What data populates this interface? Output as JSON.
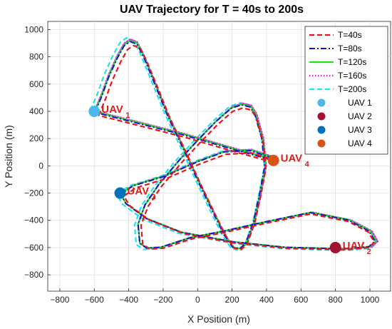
{
  "chart_data": {
    "type": "line",
    "title": "UAV Trajectory for T = 40s to 200s",
    "xlabel": "X Position (m)",
    "ylabel": "Y Position (m)",
    "xlim": [
      -870,
      1120
    ],
    "ylim": [
      -920,
      1060
    ],
    "xticks": [
      -800,
      -600,
      -400,
      -200,
      0,
      200,
      400,
      600,
      800,
      1000
    ],
    "yticks": [
      -800,
      -600,
      -400,
      -200,
      0,
      200,
      400,
      600,
      800,
      1000
    ],
    "grid": true,
    "legend_position": "top-right",
    "series": [
      {
        "name": "T=40s",
        "color": "#e8141b",
        "style": "dashed"
      },
      {
        "name": "T=80s",
        "color": "#1515c8",
        "style": "dashdot"
      },
      {
        "name": "T=120s",
        "color": "#22dd22",
        "style": "solid"
      },
      {
        "name": "T=160s",
        "color": "#e619e6",
        "style": "dotted"
      },
      {
        "name": "T=200s",
        "color": "#21e3ec",
        "style": "dashed"
      }
    ],
    "path_points": [
      [
        -600,
        400
      ],
      [
        -560,
        520
      ],
      [
        -520,
        660
      ],
      [
        -470,
        800
      ],
      [
        -430,
        890
      ],
      [
        -395,
        920
      ],
      [
        -355,
        900
      ],
      [
        -315,
        800
      ],
      [
        -250,
        600
      ],
      [
        -180,
        380
      ],
      [
        -90,
        140
      ],
      [
        0,
        -110
      ],
      [
        80,
        -320
      ],
      [
        150,
        -500
      ],
      [
        200,
        -590
      ],
      [
        240,
        -600
      ],
      [
        275,
        -560
      ],
      [
        320,
        -400
      ],
      [
        355,
        -200
      ],
      [
        385,
        0
      ],
      [
        370,
        200
      ],
      [
        330,
        380
      ],
      [
        300,
        440
      ],
      [
        250,
        455
      ],
      [
        190,
        430
      ],
      [
        100,
        330
      ],
      [
        0,
        200
      ],
      [
        -110,
        50
      ],
      [
        -230,
        -130
      ],
      [
        -310,
        -280
      ],
      [
        -350,
        -420
      ],
      [
        -340,
        -560
      ],
      [
        -300,
        -595
      ],
      [
        -220,
        -590
      ],
      [
        -50,
        -520
      ],
      [
        150,
        -470
      ],
      [
        400,
        -400
      ],
      [
        650,
        -335
      ],
      [
        870,
        -390
      ],
      [
        990,
        -470
      ],
      [
        1025,
        -545
      ],
      [
        990,
        -585
      ],
      [
        870,
        -600
      ],
      [
        800,
        -600
      ],
      [
        500,
        -590
      ],
      [
        200,
        -550
      ],
      [
        -100,
        -480
      ],
      [
        -300,
        -380
      ],
      [
        -420,
        -270
      ],
      [
        -450,
        -200
      ],
      [
        -380,
        -140
      ],
      [
        -200,
        -70
      ],
      [
        0,
        40
      ],
      [
        150,
        110
      ],
      [
        300,
        120
      ],
      [
        420,
        70
      ],
      [
        440,
        40
      ],
      [
        400,
        60
      ],
      [
        200,
        130
      ],
      [
        -100,
        240
      ],
      [
        -600,
        400
      ]
    ],
    "offsets": [
      {
        "series": "T=40s",
        "dx": 12,
        "dy": -26,
        "scale": 0.985
      },
      {
        "series": "T=80s",
        "dx": 4,
        "dy": -8,
        "scale": 1.0
      },
      {
        "series": "T=120s",
        "dx": 8,
        "dy": -4,
        "scale": 1.005
      },
      {
        "series": "T=160s",
        "dx": 12,
        "dy": 0,
        "scale": 1.012
      },
      {
        "series": "T=200s",
        "dx": 0,
        "dy": 0,
        "scale": 1.025
      }
    ],
    "markers": [
      {
        "name": "UAV 1",
        "x": -600,
        "y": 400,
        "color": "#4db8ea",
        "label": "UAV",
        "sub": "1"
      },
      {
        "name": "UAV 2",
        "x": 800,
        "y": -600,
        "color": "#a2142f",
        "label": "UAV",
        "sub": "2"
      },
      {
        "name": "UAV 3",
        "x": -450,
        "y": -200,
        "color": "#0072bd",
        "label": "UAV",
        "sub": "3"
      },
      {
        "name": "UAV 4",
        "x": 440,
        "y": 40,
        "color": "#d95319",
        "label": "UAV",
        "sub": "4"
      }
    ]
  }
}
